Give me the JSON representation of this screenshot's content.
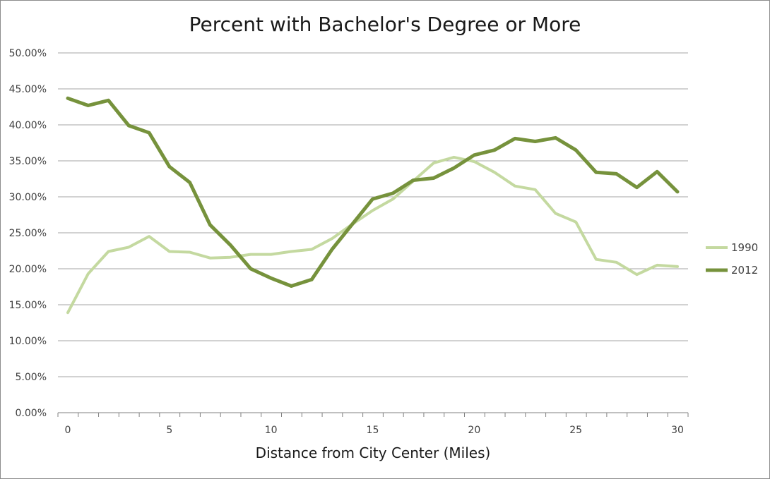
{
  "chart_data": {
    "type": "line",
    "title": "Percent with Bachelor's Degree or More",
    "xlabel": "Distance from City Center (Miles)",
    "ylabel": "",
    "x": [
      0,
      1,
      2,
      3,
      4,
      5,
      6,
      7,
      8,
      9,
      10,
      11,
      12,
      13,
      14,
      15,
      16,
      17,
      18,
      19,
      20,
      21,
      22,
      23,
      24,
      25,
      26,
      27,
      28,
      29,
      30
    ],
    "xlim": [
      0,
      30
    ],
    "ylim": [
      0,
      0.5
    ],
    "x_ticks": [
      "0",
      "5",
      "10",
      "15",
      "20",
      "25",
      "30"
    ],
    "x_tick_values": [
      0,
      5,
      10,
      15,
      20,
      25,
      30
    ],
    "y_ticks": [
      "0.00%",
      "5.00%",
      "10.00%",
      "15.00%",
      "20.00%",
      "25.00%",
      "30.00%",
      "35.00%",
      "40.00%",
      "45.00%",
      "50.00%"
    ],
    "y_tick_values": [
      0,
      0.05,
      0.1,
      0.15,
      0.2,
      0.25,
      0.3,
      0.35,
      0.4,
      0.45,
      0.5
    ],
    "grid": true,
    "legend_position": "right",
    "series": [
      {
        "name": "1990",
        "color": "#c4d9a0",
        "line_style": "thin",
        "values": [
          0.139,
          0.193,
          0.224,
          0.23,
          0.245,
          0.224,
          0.223,
          0.215,
          0.216,
          0.22,
          0.22,
          0.224,
          0.227,
          0.242,
          0.262,
          0.281,
          0.297,
          0.322,
          0.347,
          0.355,
          0.349,
          0.334,
          0.315,
          0.31,
          0.277,
          0.265,
          0.213,
          0.209,
          0.192,
          0.205,
          0.203
        ]
      },
      {
        "name": "2012",
        "color": "#76923c",
        "line_style": "thick",
        "values": [
          0.437,
          0.427,
          0.434,
          0.399,
          0.389,
          0.342,
          0.32,
          0.261,
          0.233,
          0.2,
          0.187,
          0.176,
          0.185,
          0.227,
          0.262,
          0.297,
          0.305,
          0.323,
          0.326,
          0.34,
          0.358,
          0.365,
          0.381,
          0.377,
          0.382,
          0.365,
          0.334,
          0.332,
          0.313,
          0.335,
          0.307
        ]
      }
    ]
  }
}
